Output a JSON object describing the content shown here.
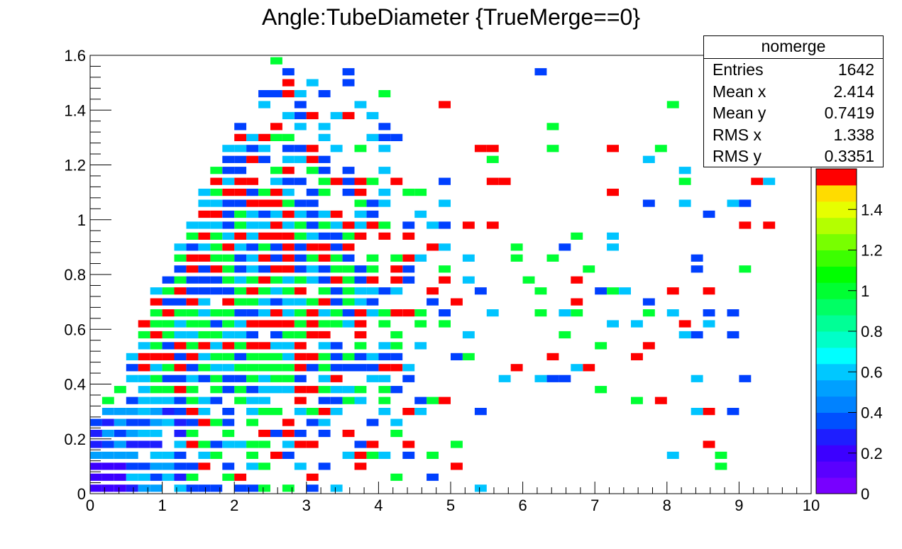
{
  "chart_data": {
    "type": "heatmap",
    "title": "Angle:TubeDiameter {TrueMerge==0}",
    "xlabel": "",
    "ylabel": "",
    "xlim": [
      0,
      10
    ],
    "ylim": [
      0,
      1.6
    ],
    "x_ticks": [
      "0",
      "1",
      "2",
      "3",
      "4",
      "5",
      "6",
      "7",
      "8",
      "9",
      "10"
    ],
    "y_ticks": [
      "0",
      "0.2",
      "0.4",
      "0.6",
      "0.8",
      "1",
      "1.2",
      "1.4",
      "1.6"
    ],
    "color_scale": {
      "min": 0,
      "max": 1.6,
      "ticks": [
        "0",
        "0.2",
        "0.4",
        "0.6",
        "0.8",
        "1",
        "1.2",
        "1.4"
      ]
    },
    "bins": {
      "nx": 60,
      "ny": 40,
      "x_min": 0,
      "x_max": 10,
      "y_min": 0,
      "y_max": 1.6
    },
    "stats": {
      "name": "nomerge",
      "rows": [
        {
          "label": "Entries",
          "value": "1642"
        },
        {
          "label": "Mean x",
          "value": "2.414"
        },
        {
          "label": "Mean y",
          "value": "0.7419"
        },
        {
          "label": "RMS x",
          "value": "1.338"
        },
        {
          "label": "RMS y",
          "value": "0.3351"
        }
      ]
    },
    "entries": 1642,
    "mean_x": 2.414,
    "mean_y": 0.7419,
    "rms_x": 1.338,
    "rms_y": 0.3351,
    "grid": false,
    "legend": "top-right"
  }
}
